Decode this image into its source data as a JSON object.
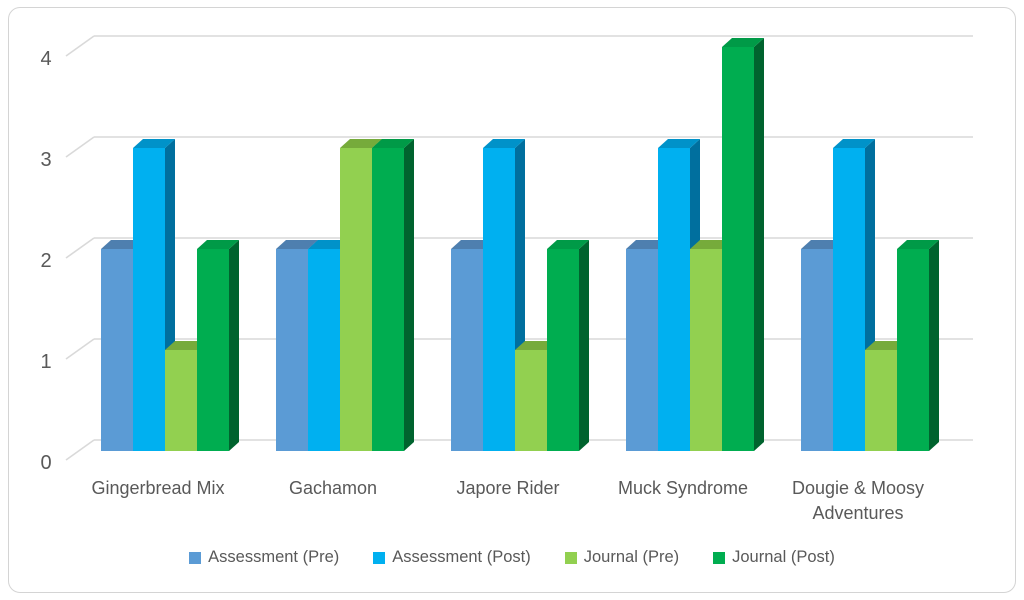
{
  "chart_data": {
    "type": "bar",
    "style": "3d-clustered-column",
    "title": "",
    "xlabel": "",
    "ylabel": "",
    "categories": [
      "Gingerbread Mix",
      "Gachamon",
      "Japore Rider",
      "Muck Syndrome",
      "Dougie & Moosy\nAdventures"
    ],
    "series": [
      {
        "name": "Assessment (Pre)",
        "values": [
          2,
          2,
          2,
          2,
          2
        ],
        "color": "#5B9BD5",
        "color_top": "#4E7FAF",
        "color_side": "#3D6A9E"
      },
      {
        "name": "Assessment (Post)",
        "values": [
          3,
          2,
          3,
          3,
          3
        ],
        "color": "#00B0F0",
        "color_top": "#0092C9",
        "color_side": "#006F9E"
      },
      {
        "name": "Journal (Pre)",
        "values": [
          1,
          3,
          1,
          2,
          1
        ],
        "color": "#92D050",
        "color_top": "#76AB3B",
        "color_side": "#5E8F2E"
      },
      {
        "name": "Journal (Post)",
        "values": [
          2,
          3,
          2,
          4,
          2
        ],
        "color": "#00AD50",
        "color_top": "#009A47",
        "color_side": "#00632E"
      }
    ],
    "y_ticks": [
      0,
      1,
      2,
      3,
      4
    ],
    "ylim": [
      0,
      4
    ],
    "grid": true,
    "legend_position": "bottom"
  },
  "colors": {
    "gridline": "#D9D9D9",
    "text": "#595959",
    "frame_border": "#D4D4D4",
    "background": "#FFFFFF"
  }
}
